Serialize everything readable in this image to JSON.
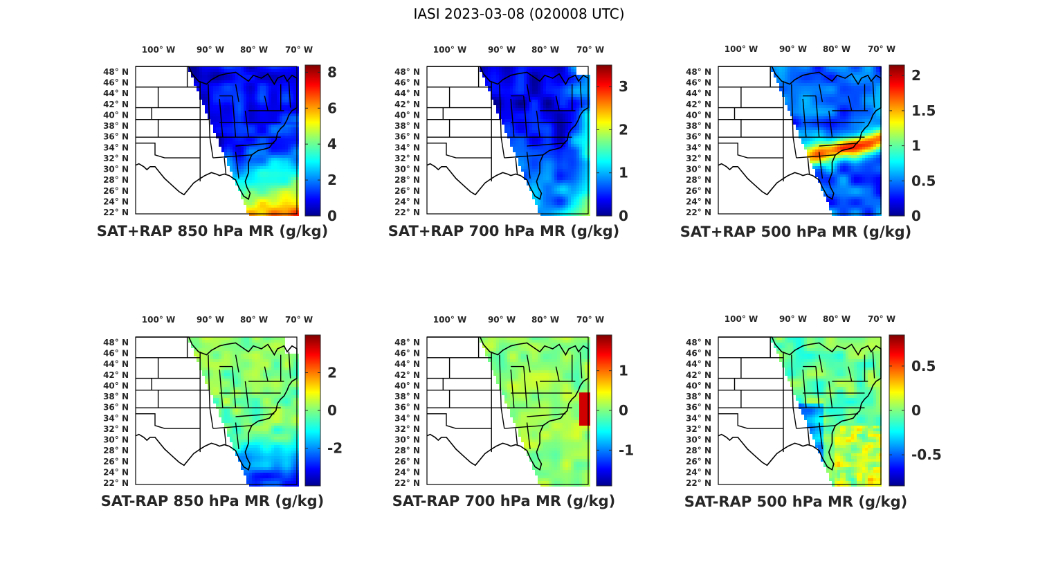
{
  "figure": {
    "title": "IASI 2023-03-08 (020008 UTC)",
    "lon_labels": [
      "100° W",
      "90° W",
      "80° W",
      "70° W"
    ],
    "lat_labels": [
      "48° N",
      "46° N",
      "44° N",
      "42° N",
      "40° N",
      "38° N",
      "36° N",
      "34° N",
      "32° N",
      "30° N",
      "28° N",
      "26° N",
      "24° N",
      "22° N"
    ],
    "colormap": "jet"
  },
  "panels": [
    {
      "title": "SAT+RAP 850 hPa MR (g/kg)",
      "colorbar": {
        "min": 0,
        "max": 8.4,
        "ticks": [
          0,
          2,
          4,
          6,
          8
        ],
        "tick_labels": [
          "0",
          "2",
          "4",
          "6",
          "8"
        ]
      },
      "field": "sum_850"
    },
    {
      "title": "SAT+RAP 700 hPa MR (g/kg)",
      "colorbar": {
        "min": 0,
        "max": 3.5,
        "ticks": [
          0,
          1,
          2,
          3
        ],
        "tick_labels": [
          "0",
          "1",
          "2",
          "3"
        ]
      },
      "field": "sum_700"
    },
    {
      "title": "SAT+RAP 500 hPa MR (g/kg)",
      "colorbar": {
        "min": 0,
        "max": 2.15,
        "ticks": [
          0,
          0.5,
          1,
          1.5,
          2
        ],
        "tick_labels": [
          "0",
          "0.5",
          "1",
          "1.5",
          "2"
        ]
      },
      "field": "sum_500"
    },
    {
      "title": "SAT-RAP 850 hPa MR (g/kg)",
      "colorbar": {
        "min": -4,
        "max": 4,
        "ticks": [
          -2,
          0,
          2
        ],
        "tick_labels": [
          "-2",
          "0",
          "2"
        ]
      },
      "field": "diff_850"
    },
    {
      "title": "SAT-RAP 700 hPa MR (g/kg)",
      "colorbar": {
        "min": -1.9,
        "max": 1.9,
        "ticks": [
          -1,
          0,
          1
        ],
        "tick_labels": [
          "-1",
          "0",
          "1"
        ]
      },
      "field": "diff_700"
    },
    {
      "title": "SAT-RAP 500 hPa MR (g/kg)",
      "colorbar": {
        "min": -0.85,
        "max": 0.85,
        "ticks": [
          -0.5,
          0,
          0.5
        ],
        "tick_labels": [
          "-0.5",
          "0",
          "0.5"
        ]
      },
      "field": "diff_500"
    }
  ]
}
